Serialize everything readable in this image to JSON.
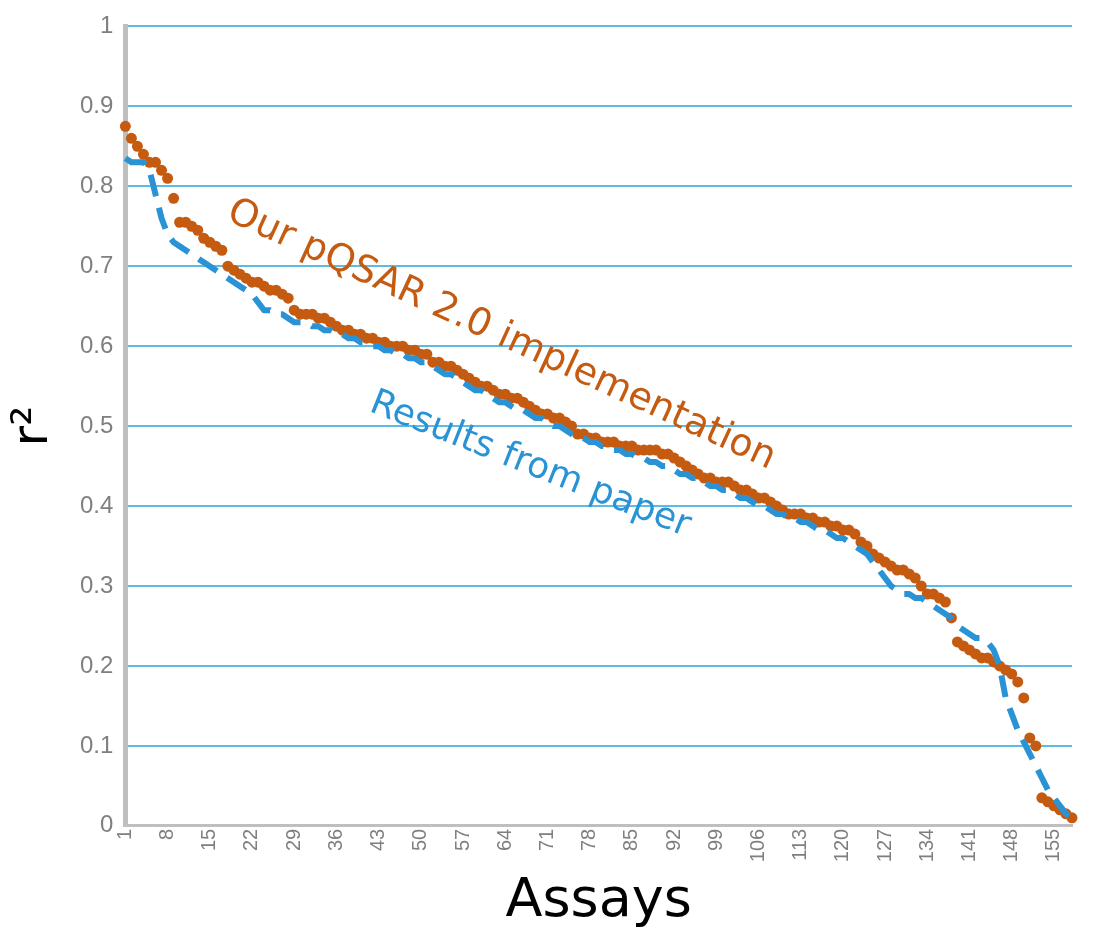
{
  "chart_data": {
    "type": "line",
    "xlabel": "Assays",
    "ylabel": "r²",
    "categories": [
      "1",
      null,
      null,
      null,
      null,
      null,
      null,
      "8",
      null,
      null,
      null,
      null,
      null,
      null,
      "15",
      null,
      null,
      null,
      null,
      null,
      null,
      "22",
      null,
      null,
      null,
      null,
      null,
      null,
      "29",
      null,
      null,
      null,
      null,
      null,
      null,
      "36",
      null,
      null,
      null,
      null,
      null,
      null,
      "43",
      null,
      null,
      null,
      null,
      null,
      null,
      "50",
      null,
      null,
      null,
      null,
      null,
      null,
      "57",
      null,
      null,
      null,
      null,
      null,
      null,
      "64",
      null,
      null,
      null,
      null,
      null,
      null,
      "71",
      null,
      null,
      null,
      null,
      null,
      null,
      "78",
      null,
      null,
      null,
      null,
      null,
      null,
      "85",
      null,
      null,
      null,
      null,
      null,
      null,
      "92",
      null,
      null,
      null,
      null,
      null,
      null,
      "99",
      null,
      null,
      null,
      null,
      null,
      null,
      "106",
      null,
      null,
      null,
      null,
      null,
      null,
      "113",
      null,
      null,
      null,
      null,
      null,
      null,
      "120",
      null,
      null,
      null,
      null,
      null,
      null,
      "127",
      null,
      null,
      null,
      null,
      null,
      null,
      "134",
      null,
      null,
      null,
      null,
      null,
      null,
      "141",
      null,
      null,
      null,
      null,
      null,
      null,
      "148",
      null,
      null,
      null,
      null,
      null,
      null,
      "155",
      null,
      null,
      null
    ],
    "series": [
      {
        "name": "Results from paper",
        "line_style": "dashed",
        "marker": "none",
        "color": "#2a93d5",
        "values": [
          0.835,
          0.83,
          0.83,
          0.83,
          0.82,
          0.79,
          0.76,
          0.74,
          0.73,
          0.725,
          0.72,
          0.715,
          0.71,
          0.705,
          0.7,
          0.695,
          0.69,
          0.685,
          0.68,
          0.675,
          0.67,
          0.665,
          0.655,
          0.645,
          0.645,
          0.64,
          0.64,
          0.635,
          0.63,
          0.63,
          0.63,
          0.625,
          0.625,
          0.62,
          0.62,
          0.615,
          0.615,
          0.61,
          0.61,
          0.605,
          0.605,
          0.6,
          0.6,
          0.595,
          0.595,
          0.59,
          0.59,
          0.585,
          0.585,
          0.58,
          0.58,
          0.575,
          0.57,
          0.565,
          0.565,
          0.56,
          0.555,
          0.55,
          0.545,
          0.545,
          0.54,
          0.535,
          0.53,
          0.53,
          0.525,
          0.52,
          0.52,
          0.515,
          0.51,
          0.51,
          0.505,
          0.5,
          0.5,
          0.495,
          0.49,
          0.485,
          0.485,
          0.48,
          0.48,
          0.475,
          0.475,
          0.47,
          0.47,
          0.465,
          0.465,
          0.46,
          0.46,
          0.455,
          0.455,
          0.45,
          0.45,
          0.445,
          0.44,
          0.44,
          0.435,
          0.435,
          0.43,
          0.425,
          0.425,
          0.42,
          0.42,
          0.415,
          0.41,
          0.41,
          0.405,
          0.4,
          0.4,
          0.395,
          0.39,
          0.39,
          0.385,
          0.385,
          0.38,
          0.38,
          0.375,
          0.37,
          0.37,
          0.365,
          0.36,
          0.36,
          0.355,
          0.35,
          0.345,
          0.34,
          0.33,
          0.32,
          0.31,
          0.3,
          0.295,
          0.29,
          0.29,
          0.285,
          0.285,
          0.28,
          0.275,
          0.27,
          0.265,
          0.26,
          0.25,
          0.245,
          0.24,
          0.235,
          0.235,
          0.23,
          0.22,
          0.2,
          0.16,
          0.14,
          0.12,
          0.105,
          0.09,
          0.075,
          0.06,
          0.045,
          0.035,
          0.025,
          0.015,
          0.01
        ]
      },
      {
        "name": "Our pQSAR 2.0 implementation",
        "type": "scatter",
        "marker": "circle",
        "color": "#c55a11",
        "values": [
          0.875,
          0.86,
          0.85,
          0.84,
          0.83,
          0.83,
          0.82,
          0.81,
          0.785,
          0.755,
          0.755,
          0.75,
          0.745,
          0.735,
          0.73,
          0.725,
          0.72,
          0.7,
          0.695,
          0.69,
          0.685,
          0.68,
          0.68,
          0.675,
          0.67,
          0.67,
          0.665,
          0.66,
          0.645,
          0.64,
          0.64,
          0.64,
          0.635,
          0.635,
          0.63,
          0.625,
          0.62,
          0.62,
          0.615,
          0.615,
          0.61,
          0.61,
          0.605,
          0.605,
          0.6,
          0.6,
          0.6,
          0.595,
          0.595,
          0.59,
          0.59,
          0.58,
          0.58,
          0.575,
          0.575,
          0.57,
          0.565,
          0.56,
          0.555,
          0.55,
          0.55,
          0.545,
          0.54,
          0.54,
          0.535,
          0.535,
          0.53,
          0.525,
          0.52,
          0.515,
          0.515,
          0.51,
          0.51,
          0.505,
          0.5,
          0.49,
          0.49,
          0.485,
          0.485,
          0.48,
          0.48,
          0.48,
          0.475,
          0.475,
          0.475,
          0.47,
          0.47,
          0.47,
          0.47,
          0.465,
          0.465,
          0.46,
          0.455,
          0.45,
          0.445,
          0.44,
          0.435,
          0.435,
          0.43,
          0.43,
          0.43,
          0.425,
          0.42,
          0.42,
          0.415,
          0.41,
          0.41,
          0.405,
          0.4,
          0.395,
          0.39,
          0.39,
          0.39,
          0.385,
          0.385,
          0.38,
          0.38,
          0.375,
          0.375,
          0.37,
          0.37,
          0.365,
          0.355,
          0.35,
          0.34,
          0.335,
          0.33,
          0.325,
          0.32,
          0.32,
          0.315,
          0.31,
          0.3,
          0.29,
          0.29,
          0.285,
          0.28,
          0.26,
          0.23,
          0.225,
          0.22,
          0.215,
          0.21,
          0.21,
          0.205,
          0.2,
          0.195,
          0.19,
          0.18,
          0.16,
          0.11,
          0.1,
          0.035,
          0.03,
          0.025,
          0.02,
          0.015,
          0.01
        ]
      }
    ],
    "ylim": [
      0,
      1
    ],
    "yticks": [
      0,
      0.1,
      0.2,
      0.3,
      0.4,
      0.5,
      0.6,
      0.7,
      0.8,
      0.9,
      1
    ],
    "grid": "y",
    "legend": false
  }
}
